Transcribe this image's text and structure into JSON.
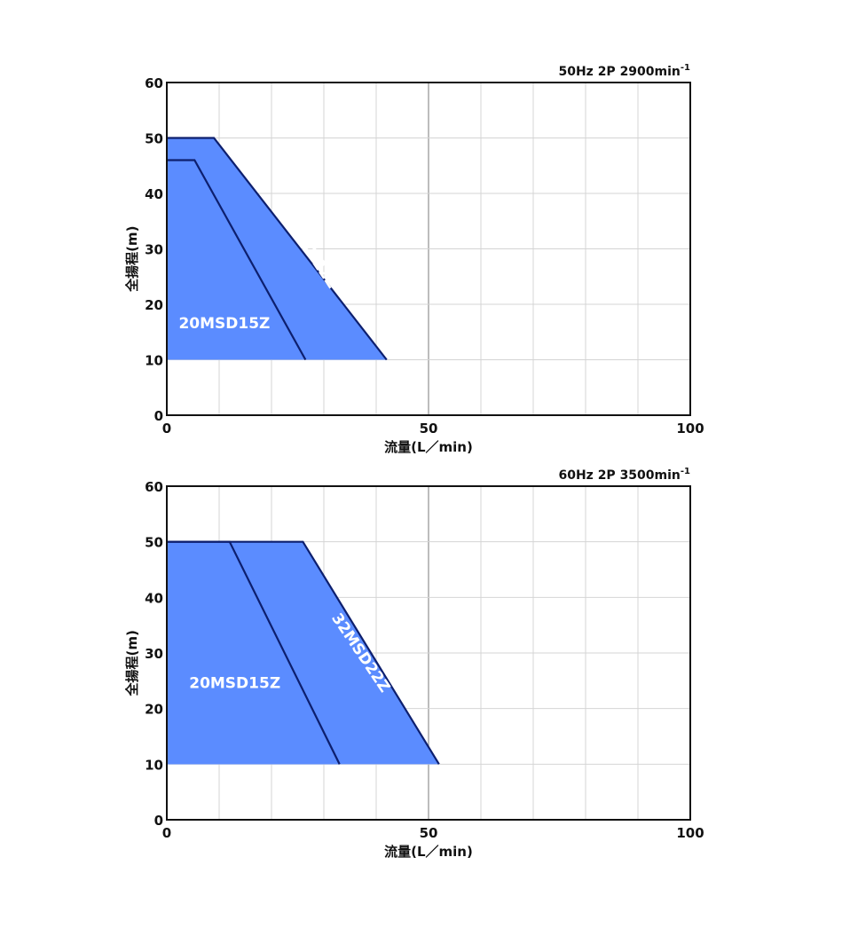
{
  "chart_data": [
    {
      "type": "area",
      "condition": {
        "main": "50Hz 2P 2900min",
        "sup": "-1"
      },
      "xlabel": "流量(L／min)",
      "ylabel": "全揚程(m)",
      "xlim": [
        0,
        100
      ],
      "ylim": [
        0,
        60
      ],
      "x_ticks": [
        "0",
        "50",
        "100"
      ],
      "y_ticks": [
        "0",
        "10",
        "20",
        "30",
        "40",
        "50",
        "60"
      ],
      "grid": true,
      "fill_color": "#5b8cff",
      "line_color": "#0d1f6e",
      "series": [
        {
          "name": "32MSD22Z",
          "points": [
            [
              0,
              50
            ],
            [
              9,
              50
            ],
            [
              42,
              10
            ],
            [
              0,
              10
            ]
          ]
        },
        {
          "name": "20MSD15Z",
          "points": [
            [
              0,
              46
            ],
            [
              5.3,
              46
            ],
            [
              26.5,
              10
            ],
            [
              0,
              10
            ]
          ]
        }
      ]
    },
    {
      "type": "area",
      "condition": {
        "main": "60Hz 2P 3500min",
        "sup": "-1"
      },
      "xlabel": "流量(L／min)",
      "ylabel": "全揚程(m)",
      "xlim": [
        0,
        100
      ],
      "ylim": [
        0,
        60
      ],
      "x_ticks": [
        "0",
        "50",
        "100"
      ],
      "y_ticks": [
        "0",
        "10",
        "20",
        "30",
        "40",
        "50",
        "60"
      ],
      "grid": true,
      "fill_color": "#5b8cff",
      "line_color": "#0d1f6e",
      "series": [
        {
          "name": "32MSD22Z",
          "points": [
            [
              0,
              50
            ],
            [
              26,
              50
            ],
            [
              52,
              10
            ],
            [
              0,
              10
            ]
          ]
        },
        {
          "name": "20MSD15Z",
          "points": [
            [
              0,
              50
            ],
            [
              12,
              50
            ],
            [
              33,
              10
            ],
            [
              0,
              10
            ]
          ]
        }
      ]
    }
  ]
}
